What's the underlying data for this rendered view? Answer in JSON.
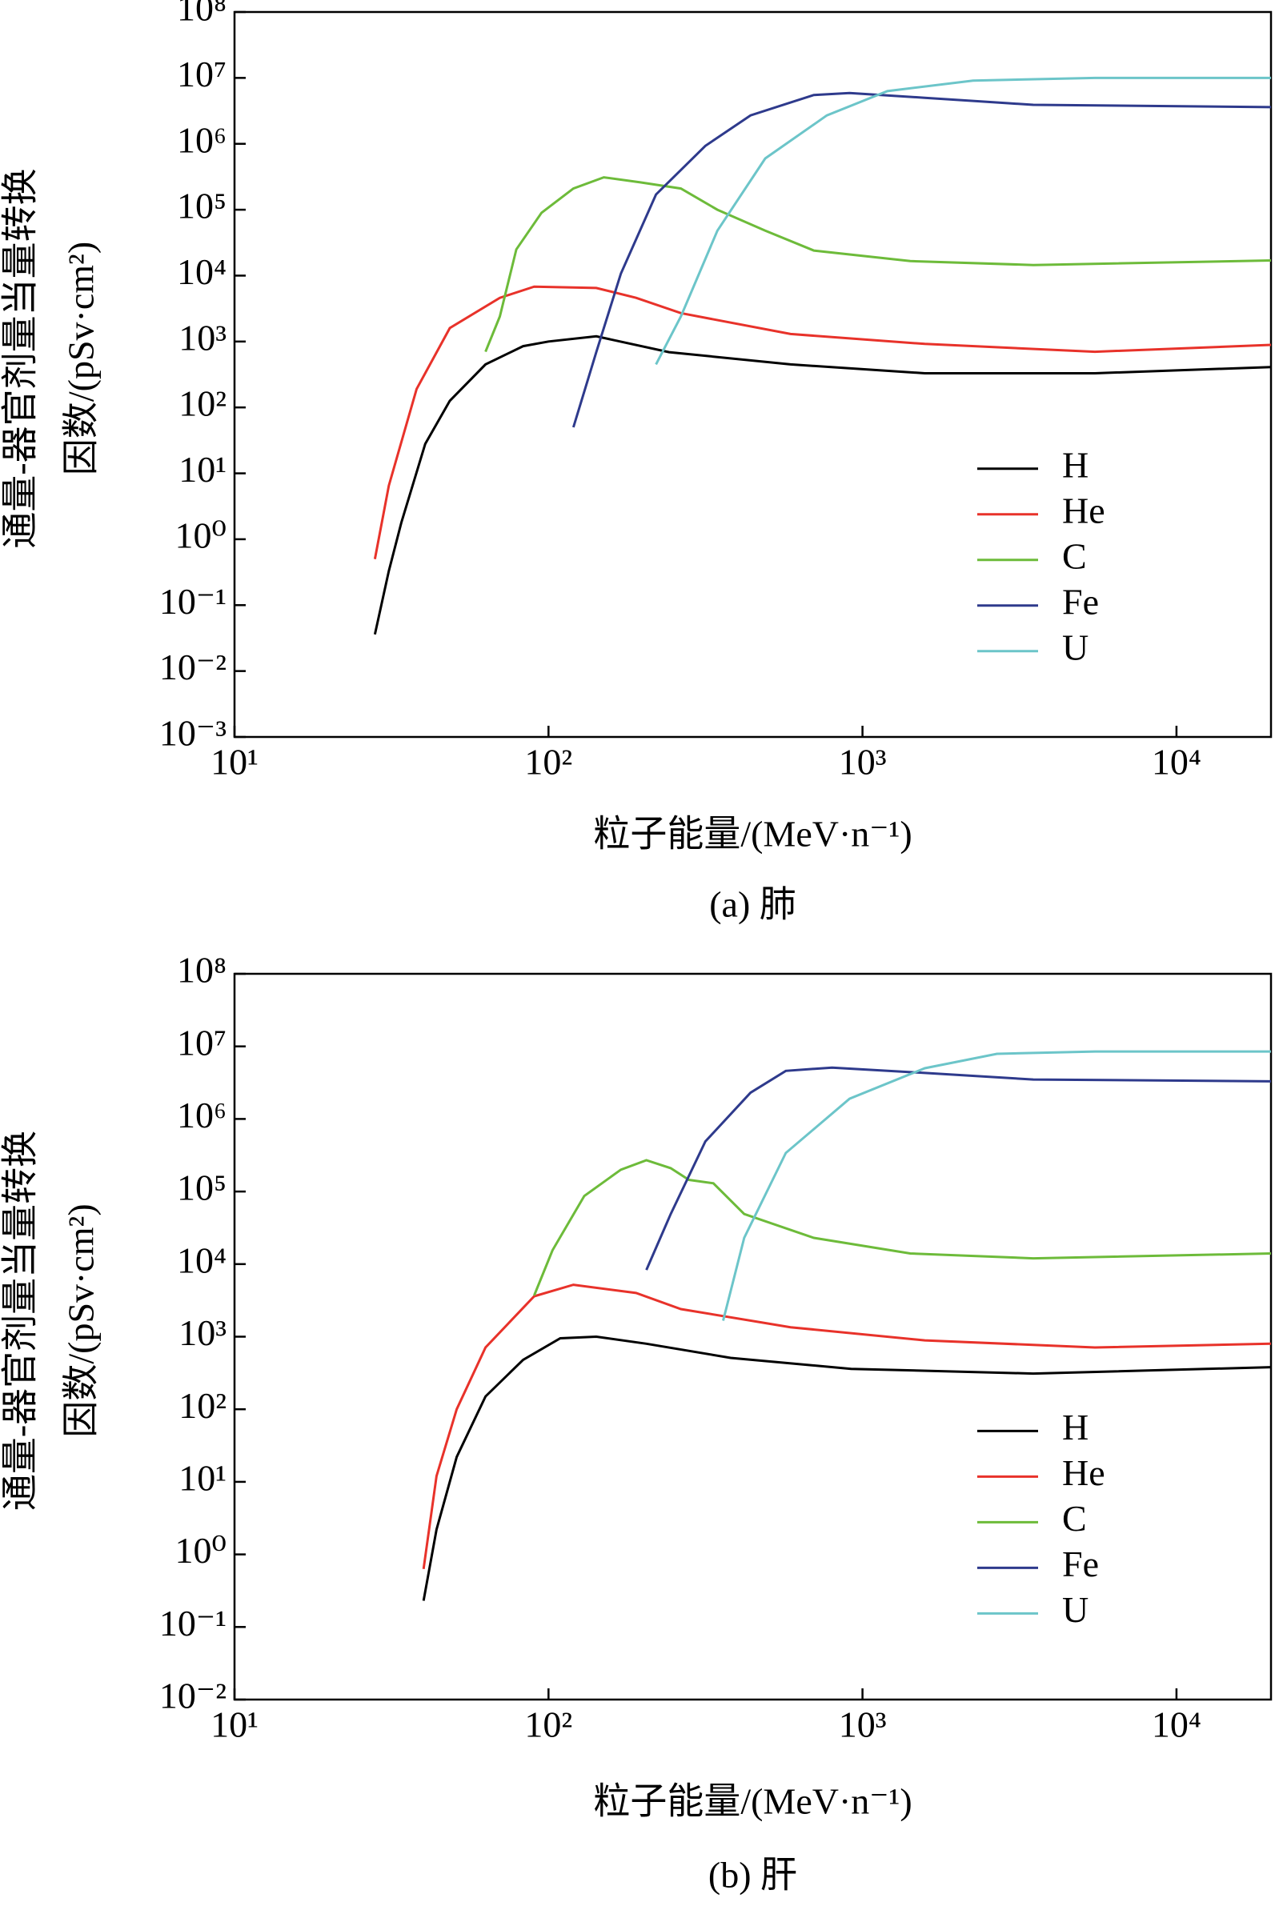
{
  "chart_data": [
    {
      "type": "line",
      "caption": "(a) 肺",
      "xlabel": "粒子能量/(MeV·n⁻¹)",
      "ylabel": [
        "通量-器官剂量当量转换",
        "因数/(pSv·cm²)"
      ],
      "xlog": true,
      "ylog": true,
      "legend": "right",
      "xlim": [
        10,
        20000
      ],
      "ylim": [
        0.001,
        100000000
      ],
      "xticks": [
        {
          "value": 10,
          "label": "10¹"
        },
        {
          "value": 100,
          "label": "10²"
        },
        {
          "value": 1000,
          "label": "10³"
        },
        {
          "value": 10000,
          "label": "10⁴"
        }
      ],
      "yticks": [
        {
          "value": 0.001,
          "label": "10⁻³"
        },
        {
          "value": 0.01,
          "label": "10⁻²"
        },
        {
          "value": 0.1,
          "label": "10⁻¹"
        },
        {
          "value": 1,
          "label": "10⁰"
        },
        {
          "value": 10,
          "label": "10¹"
        },
        {
          "value": 100,
          "label": "10²"
        },
        {
          "value": 1000,
          "label": "10³"
        },
        {
          "value": 10000,
          "label": "10⁴"
        },
        {
          "value": 100000,
          "label": "10⁵"
        },
        {
          "value": 1000000,
          "label": "10⁶"
        },
        {
          "value": 10000000,
          "label": "10⁷"
        },
        {
          "value": 100000000,
          "label": "10⁸"
        }
      ],
      "series": [
        {
          "name": "H",
          "color": "#000000",
          "x": [
            28,
            31,
            34,
            40.5,
            48.5,
            63,
            83,
            100,
            142,
            242,
            590,
            1580,
            5500,
            20000
          ],
          "values": [
            0.036,
            0.33,
            1.8,
            28,
            126,
            450,
            850,
            1000,
            1200,
            690,
            450,
            330,
            330,
            410
          ]
        },
        {
          "name": "He",
          "color": "#e8322a",
          "x": [
            28,
            31,
            38,
            48.5,
            70,
            90,
            142,
            190,
            264,
            590,
            1580,
            5500,
            20000
          ],
          "values": [
            0.5,
            6.5,
            190,
            1600,
            4600,
            6800,
            6500,
            4600,
            2700,
            1300,
            920,
            700,
            890
          ]
        },
        {
          "name": "C",
          "color": "#6dbb3a",
          "x": [
            63,
            70,
            79,
            95,
            120,
            150,
            196,
            264,
            345,
            490,
            700,
            1420,
            3500,
            20000
          ],
          "values": [
            700,
            2400,
            25000,
            90000,
            210000,
            310000,
            260000,
            210000,
            100000,
            48000,
            24000,
            16600,
            14500,
            17000
          ]
        },
        {
          "name": "Fe",
          "color": "#2e3a8c",
          "x": [
            120,
            142,
            170,
            220,
            316,
            440,
            700,
            910,
            1580,
            3500,
            20000
          ],
          "values": [
            50,
            690,
            10700,
            170000,
            930000,
            2700000,
            5500000,
            5900000,
            5000000,
            3900000,
            3600000
          ]
        },
        {
          "name": "U",
          "color": "#6cc5c9",
          "x": [
            220,
            264,
            345,
            490,
            770,
            1200,
            2250,
            5500,
            20000
          ],
          "values": [
            450,
            2400,
            48000,
            600000,
            2700000,
            6300000,
            9100000,
            10000000,
            10000000
          ]
        }
      ]
    },
    {
      "type": "line",
      "caption": "(b) 肝",
      "xlabel": "粒子能量/(MeV·n⁻¹)",
      "ylabel": [
        "通量-器官剂量当量转换",
        "因数/(pSv·cm²)"
      ],
      "xlog": true,
      "ylog": true,
      "legend": "right",
      "xlim": [
        10,
        20000
      ],
      "ylim": [
        0.01,
        100000000
      ],
      "xticks": [
        {
          "value": 10,
          "label": "10¹"
        },
        {
          "value": 100,
          "label": "10²"
        },
        {
          "value": 1000,
          "label": "10³"
        },
        {
          "value": 10000,
          "label": "10⁴"
        }
      ],
      "yticks": [
        {
          "value": 0.01,
          "label": "10⁻²"
        },
        {
          "value": 0.1,
          "label": "10⁻¹"
        },
        {
          "value": 1,
          "label": "10⁰"
        },
        {
          "value": 10,
          "label": "10¹"
        },
        {
          "value": 100,
          "label": "10²"
        },
        {
          "value": 1000,
          "label": "10³"
        },
        {
          "value": 10000,
          "label": "10⁴"
        },
        {
          "value": 100000,
          "label": "10⁵"
        },
        {
          "value": 1000000,
          "label": "10⁶"
        },
        {
          "value": 10000000,
          "label": "10⁷"
        },
        {
          "value": 100000000,
          "label": "10⁸"
        }
      ],
      "series": [
        {
          "name": "H",
          "color": "#000000",
          "x": [
            40,
            44,
            51,
            63,
            83,
            109,
            142,
            205,
            380,
            920,
            3500,
            20000
          ],
          "values": [
            0.23,
            2.2,
            22,
            150,
            480,
            950,
            1000,
            800,
            510,
            360,
            310,
            380
          ]
        },
        {
          "name": "He",
          "color": "#e8322a",
          "x": [
            40,
            44,
            51,
            63,
            90,
            120,
            190,
            264,
            590,
            1580,
            5500,
            20000
          ],
          "values": [
            0.63,
            12,
            100,
            710,
            3600,
            5200,
            4000,
            2400,
            1350,
            890,
            710,
            800
          ]
        },
        {
          "name": "C",
          "color": "#6dbb3a",
          "x": [
            90,
            103,
            130,
            170,
            205,
            245,
            280,
            335,
            420,
            700,
            1420,
            3500,
            20000
          ],
          "values": [
            3700,
            15500,
            87000,
            200000,
            270000,
            210000,
            145000,
            130000,
            49000,
            23000,
            14000,
            12000,
            14000
          ]
        },
        {
          "name": "Fe",
          "color": "#2e3a8c",
          "x": [
            205,
            245,
            316,
            440,
            570,
            800,
            1580,
            3500,
            20000
          ],
          "values": [
            8300,
            49000,
            490000,
            2300000,
            4600000,
            5100000,
            4300000,
            3500000,
            3300000
          ]
        },
        {
          "name": "U",
          "color": "#6cc5c9",
          "x": [
            360,
            420,
            570,
            910,
            1580,
            2680,
            5500,
            20000
          ],
          "values": [
            1660,
            23000,
            340000,
            1900000,
            5000000,
            7900000,
            8500000,
            8500000
          ]
        }
      ]
    }
  ]
}
